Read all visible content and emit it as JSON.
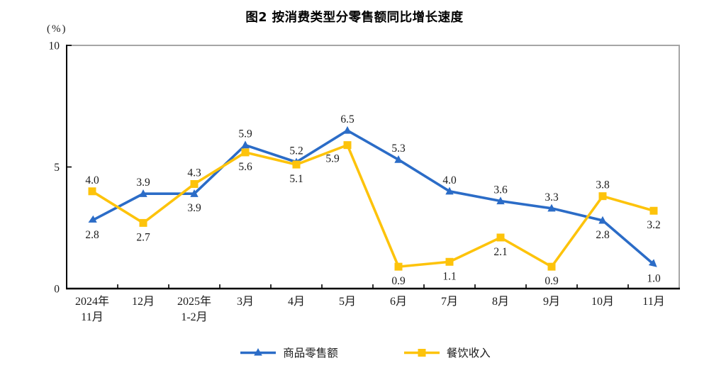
{
  "page": {
    "background": "#ffffff"
  },
  "chart_data": {
    "type": "line",
    "title": "图2  按消费类型分零售额同比增长速度",
    "unit_label": "(%)",
    "categories": [
      "2024年\n11月",
      "12月",
      "2025年\n1-2月",
      "3月",
      "4月",
      "5月",
      "6月",
      "7月",
      "8月",
      "9月",
      "10月",
      "11月"
    ],
    "ylim": [
      0,
      10
    ],
    "yticks": [
      0,
      5,
      10
    ],
    "grid": false,
    "legend_position": "bottom",
    "axis_color": "#000000",
    "border_color": "#a6a6a6",
    "label_color": "#1a1a1a",
    "series": [
      {
        "name": "商品零售额",
        "color": "#2b6cc7",
        "marker": "triangle",
        "values": [
          2.8,
          3.9,
          3.9,
          5.9,
          5.2,
          6.5,
          5.3,
          4.0,
          3.6,
          3.3,
          2.8,
          1.0
        ],
        "label_pos": [
          "below",
          "above",
          "below",
          "above",
          "above",
          "above",
          "above",
          "above",
          "above",
          "above",
          "below",
          "below"
        ]
      },
      {
        "name": "餐饮收入",
        "color": "#fdc30b",
        "marker": "square",
        "values": [
          4.0,
          2.7,
          4.3,
          5.6,
          5.1,
          5.9,
          0.9,
          1.1,
          2.1,
          0.9,
          3.8,
          3.2
        ],
        "label_pos": [
          "above",
          "below",
          "above",
          "below",
          "below",
          "below-left",
          "below",
          "below",
          "below",
          "below",
          "above",
          "below"
        ]
      }
    ]
  }
}
